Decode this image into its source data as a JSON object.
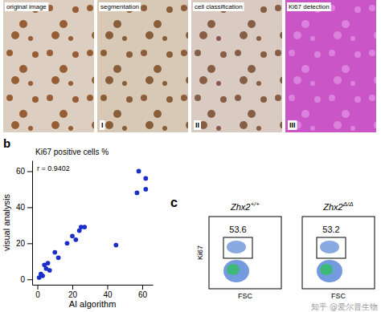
{
  "chart_data": [
    {
      "type": "scatter",
      "panel_label": "b",
      "title": "Ki67 positive cells %",
      "x_label": "AI algorithm",
      "y_label": "visual analysis",
      "annotation": "r = 0.9402",
      "color": "#1a2fc8",
      "marker": "circle",
      "x": [
        1,
        2,
        3,
        4,
        5,
        6,
        7,
        10,
        12,
        17,
        20,
        22,
        24,
        25,
        27,
        45,
        57,
        58,
        62,
        62
      ],
      "values": [
        1,
        3,
        2,
        8,
        6,
        9,
        5,
        15,
        12,
        20,
        24,
        22,
        27,
        29,
        29,
        19,
        48,
        60,
        56,
        50
      ],
      "xlim": [
        -3,
        66
      ],
      "ylim": [
        -3,
        66
      ],
      "xticks": [
        0,
        20,
        40,
        60
      ],
      "yticks": [
        0,
        20,
        40,
        60
      ]
    }
  ],
  "panel_a": {
    "panels": [
      {
        "label": "original image"
      },
      {
        "label": "segmentation",
        "numeral": "I"
      },
      {
        "label": "cell classification",
        "numeral": "II"
      },
      {
        "label": "Ki67 detection",
        "numeral": "III"
      }
    ]
  },
  "panel_c": {
    "panel_label": "c",
    "y_label": "Ki67",
    "x_label": "FSC",
    "plots": [
      {
        "title": "Zhx2",
        "sup": "+/+",
        "gate_value": "53.6"
      },
      {
        "title": "Zhx2",
        "sup": "Δ/Δ",
        "gate_value": "53.2"
      }
    ]
  },
  "watermark": "知乎 @爱尔普生物"
}
